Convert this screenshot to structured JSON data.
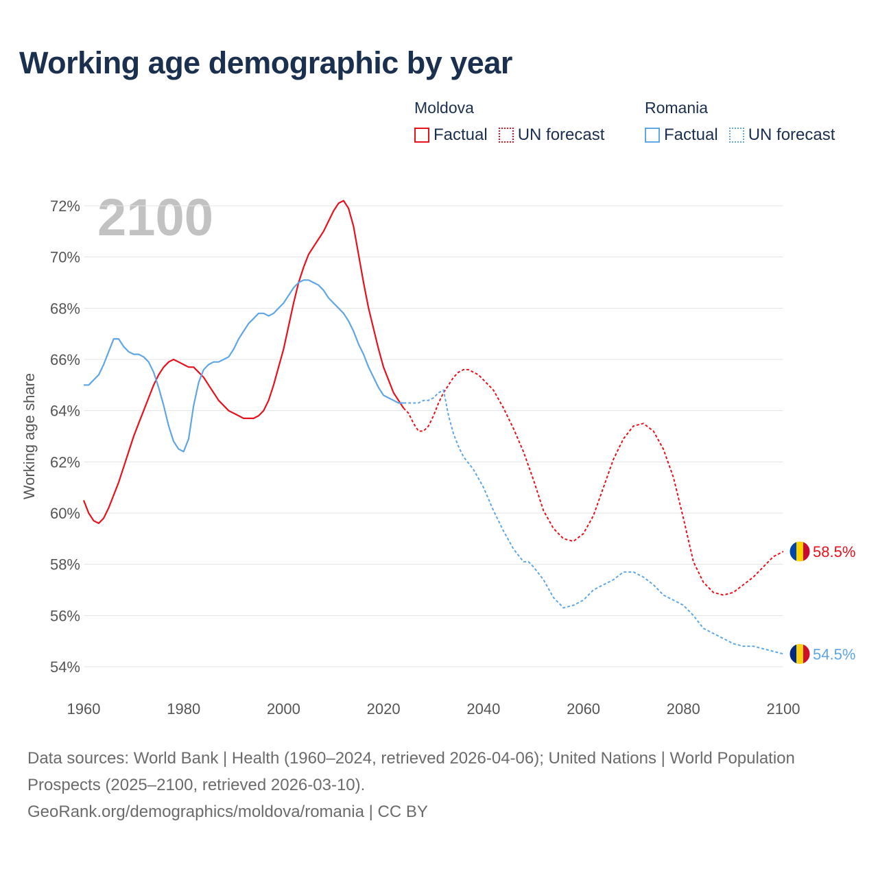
{
  "title": "Working age demographic by year",
  "legend": {
    "moldova": {
      "country": "Moldova",
      "factual": "Factual",
      "forecast": "UN forecast",
      "color": "#e8111b"
    },
    "romania": {
      "country": "Romania",
      "factual": "Factual",
      "forecast": "UN forecast",
      "color": "#5ea6e4"
    }
  },
  "footer": {
    "sources": "Data sources: World Bank | Health (1960–2024, retrieved 2026-04-06); United Nations | World Population Prospects (2025–2100, retrieved 2026-03-10).",
    "attribution": "GeoRank.org/demographics/moldova/romania | CC BY"
  },
  "chart_data": {
    "type": "line",
    "title": "Working age demographic by year",
    "ylabel": "Working age share",
    "xlabel": "",
    "year_watermark": "2100",
    "xlim": [
      1960,
      2100
    ],
    "ylim": [
      54,
      72
    ],
    "x_ticks": [
      1960,
      1980,
      2000,
      2020,
      2040,
      2060,
      2080,
      2100
    ],
    "y_ticks": [
      54,
      56,
      58,
      60,
      62,
      64,
      66,
      68,
      70,
      72
    ],
    "y_tick_labels": [
      "54%",
      "56%",
      "58%",
      "60%",
      "62%",
      "64%",
      "66%",
      "68%",
      "70%",
      "72%"
    ],
    "grid": true,
    "factual_end": 2024,
    "series": [
      {
        "name": "Moldova",
        "color": "#e8111b",
        "end_label": "58.5%",
        "flag": [
          "#0046ae",
          "#ffd200",
          "#cc092f"
        ],
        "points": [
          [
            1960,
            60.5
          ],
          [
            1961,
            60.0
          ],
          [
            1962,
            59.7
          ],
          [
            1963,
            59.6
          ],
          [
            1964,
            59.8
          ],
          [
            1965,
            60.2
          ],
          [
            1966,
            60.7
          ],
          [
            1967,
            61.2
          ],
          [
            1968,
            61.8
          ],
          [
            1969,
            62.4
          ],
          [
            1970,
            63.0
          ],
          [
            1971,
            63.5
          ],
          [
            1972,
            64.0
          ],
          [
            1973,
            64.5
          ],
          [
            1974,
            65.0
          ],
          [
            1975,
            65.4
          ],
          [
            1976,
            65.7
          ],
          [
            1977,
            65.9
          ],
          [
            1978,
            66.0
          ],
          [
            1979,
            65.9
          ],
          [
            1980,
            65.8
          ],
          [
            1981,
            65.7
          ],
          [
            1982,
            65.7
          ],
          [
            1983,
            65.5
          ],
          [
            1984,
            65.3
          ],
          [
            1985,
            65.0
          ],
          [
            1986,
            64.7
          ],
          [
            1987,
            64.4
          ],
          [
            1988,
            64.2
          ],
          [
            1989,
            64.0
          ],
          [
            1990,
            63.9
          ],
          [
            1991,
            63.8
          ],
          [
            1992,
            63.7
          ],
          [
            1993,
            63.7
          ],
          [
            1994,
            63.7
          ],
          [
            1995,
            63.8
          ],
          [
            1996,
            64.0
          ],
          [
            1997,
            64.4
          ],
          [
            1998,
            65.0
          ],
          [
            1999,
            65.7
          ],
          [
            2000,
            66.4
          ],
          [
            2001,
            67.3
          ],
          [
            2002,
            68.2
          ],
          [
            2003,
            69.0
          ],
          [
            2004,
            69.6
          ],
          [
            2005,
            70.1
          ],
          [
            2006,
            70.4
          ],
          [
            2007,
            70.7
          ],
          [
            2008,
            71.0
          ],
          [
            2009,
            71.4
          ],
          [
            2010,
            71.8
          ],
          [
            2011,
            72.1
          ],
          [
            2012,
            72.2
          ],
          [
            2013,
            71.9
          ],
          [
            2014,
            71.2
          ],
          [
            2015,
            70.1
          ],
          [
            2016,
            69.0
          ],
          [
            2017,
            68.0
          ],
          [
            2018,
            67.2
          ],
          [
            2019,
            66.4
          ],
          [
            2020,
            65.7
          ],
          [
            2021,
            65.2
          ],
          [
            2022,
            64.7
          ],
          [
            2023,
            64.4
          ],
          [
            2024,
            64.1
          ],
          [
            2025,
            63.9
          ],
          [
            2026,
            63.5
          ],
          [
            2027,
            63.2
          ],
          [
            2028,
            63.2
          ],
          [
            2029,
            63.4
          ],
          [
            2030,
            63.8
          ],
          [
            2031,
            64.3
          ],
          [
            2032,
            64.7
          ],
          [
            2033,
            65.0
          ],
          [
            2034,
            65.3
          ],
          [
            2035,
            65.5
          ],
          [
            2036,
            65.6
          ],
          [
            2037,
            65.6
          ],
          [
            2038,
            65.5
          ],
          [
            2039,
            65.4
          ],
          [
            2040,
            65.2
          ],
          [
            2042,
            64.8
          ],
          [
            2044,
            64.1
          ],
          [
            2046,
            63.3
          ],
          [
            2048,
            62.4
          ],
          [
            2050,
            61.3
          ],
          [
            2052,
            60.1
          ],
          [
            2054,
            59.4
          ],
          [
            2056,
            59.0
          ],
          [
            2058,
            58.9
          ],
          [
            2060,
            59.2
          ],
          [
            2062,
            59.9
          ],
          [
            2064,
            61.0
          ],
          [
            2066,
            62.1
          ],
          [
            2068,
            62.9
          ],
          [
            2070,
            63.4
          ],
          [
            2072,
            63.5
          ],
          [
            2074,
            63.2
          ],
          [
            2076,
            62.5
          ],
          [
            2078,
            61.4
          ],
          [
            2080,
            59.8
          ],
          [
            2082,
            58.1
          ],
          [
            2084,
            57.3
          ],
          [
            2086,
            56.9
          ],
          [
            2088,
            56.8
          ],
          [
            2090,
            56.9
          ],
          [
            2092,
            57.2
          ],
          [
            2094,
            57.5
          ],
          [
            2096,
            57.9
          ],
          [
            2098,
            58.3
          ],
          [
            2100,
            58.5
          ]
        ]
      },
      {
        "name": "Romania",
        "color": "#5ea6e4",
        "end_label": "54.5%",
        "flag": [
          "#002b7f",
          "#fcd116",
          "#ce1126"
        ],
        "points": [
          [
            1960,
            65.0
          ],
          [
            1961,
            65.0
          ],
          [
            1962,
            65.2
          ],
          [
            1963,
            65.4
          ],
          [
            1964,
            65.8
          ],
          [
            1965,
            66.3
          ],
          [
            1966,
            66.8
          ],
          [
            1967,
            66.8
          ],
          [
            1968,
            66.5
          ],
          [
            1969,
            66.3
          ],
          [
            1970,
            66.2
          ],
          [
            1971,
            66.2
          ],
          [
            1972,
            66.1
          ],
          [
            1973,
            65.9
          ],
          [
            1974,
            65.5
          ],
          [
            1975,
            64.9
          ],
          [
            1976,
            64.2
          ],
          [
            1977,
            63.4
          ],
          [
            1978,
            62.8
          ],
          [
            1979,
            62.5
          ],
          [
            1980,
            62.4
          ],
          [
            1981,
            62.9
          ],
          [
            1982,
            64.2
          ],
          [
            1983,
            65.1
          ],
          [
            1984,
            65.6
          ],
          [
            1985,
            65.8
          ],
          [
            1986,
            65.9
          ],
          [
            1987,
            65.9
          ],
          [
            1988,
            66.0
          ],
          [
            1989,
            66.1
          ],
          [
            1990,
            66.4
          ],
          [
            1991,
            66.8
          ],
          [
            1992,
            67.1
          ],
          [
            1993,
            67.4
          ],
          [
            1994,
            67.6
          ],
          [
            1995,
            67.8
          ],
          [
            1996,
            67.8
          ],
          [
            1997,
            67.7
          ],
          [
            1998,
            67.8
          ],
          [
            1999,
            68.0
          ],
          [
            2000,
            68.2
          ],
          [
            2001,
            68.5
          ],
          [
            2002,
            68.8
          ],
          [
            2003,
            69.0
          ],
          [
            2004,
            69.1
          ],
          [
            2005,
            69.1
          ],
          [
            2006,
            69.0
          ],
          [
            2007,
            68.9
          ],
          [
            2008,
            68.7
          ],
          [
            2009,
            68.4
          ],
          [
            2010,
            68.2
          ],
          [
            2011,
            68.0
          ],
          [
            2012,
            67.8
          ],
          [
            2013,
            67.5
          ],
          [
            2014,
            67.1
          ],
          [
            2015,
            66.6
          ],
          [
            2016,
            66.2
          ],
          [
            2017,
            65.7
          ],
          [
            2018,
            65.3
          ],
          [
            2019,
            64.9
          ],
          [
            2020,
            64.6
          ],
          [
            2021,
            64.5
          ],
          [
            2022,
            64.4
          ],
          [
            2023,
            64.3
          ],
          [
            2024,
            64.3
          ],
          [
            2025,
            64.3
          ],
          [
            2026,
            64.3
          ],
          [
            2027,
            64.3
          ],
          [
            2028,
            64.4
          ],
          [
            2029,
            64.4
          ],
          [
            2030,
            64.5
          ],
          [
            2031,
            64.7
          ],
          [
            2032,
            64.8
          ],
          [
            2033,
            63.8
          ],
          [
            2034,
            63.1
          ],
          [
            2035,
            62.6
          ],
          [
            2036,
            62.2
          ],
          [
            2038,
            61.7
          ],
          [
            2040,
            61.0
          ],
          [
            2042,
            60.1
          ],
          [
            2044,
            59.3
          ],
          [
            2046,
            58.6
          ],
          [
            2048,
            58.1
          ],
          [
            2049,
            58.1
          ],
          [
            2050,
            57.9
          ],
          [
            2052,
            57.4
          ],
          [
            2054,
            56.7
          ],
          [
            2056,
            56.3
          ],
          [
            2058,
            56.4
          ],
          [
            2060,
            56.6
          ],
          [
            2062,
            57.0
          ],
          [
            2064,
            57.2
          ],
          [
            2066,
            57.4
          ],
          [
            2068,
            57.7
          ],
          [
            2070,
            57.7
          ],
          [
            2072,
            57.5
          ],
          [
            2074,
            57.2
          ],
          [
            2076,
            56.8
          ],
          [
            2078,
            56.6
          ],
          [
            2080,
            56.4
          ],
          [
            2082,
            56.0
          ],
          [
            2084,
            55.5
          ],
          [
            2086,
            55.3
          ],
          [
            2088,
            55.1
          ],
          [
            2090,
            54.9
          ],
          [
            2092,
            54.8
          ],
          [
            2094,
            54.8
          ],
          [
            2096,
            54.7
          ],
          [
            2098,
            54.6
          ],
          [
            2100,
            54.5
          ]
        ]
      }
    ]
  }
}
